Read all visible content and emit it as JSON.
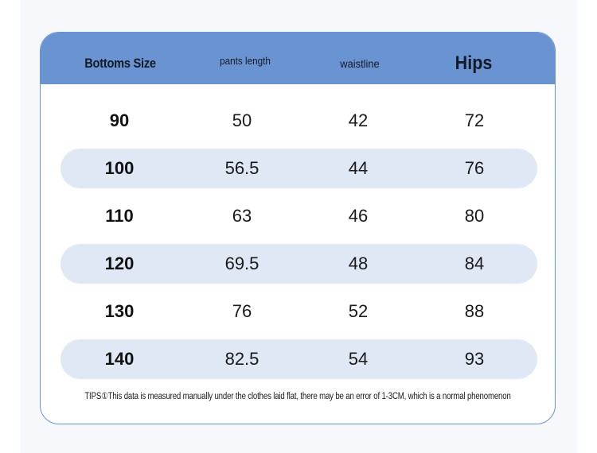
{
  "table": {
    "headers": [
      "Bottoms Size",
      "pants length",
      "waistline",
      "Hips"
    ],
    "rows": [
      [
        "90",
        "50",
        "42",
        "72"
      ],
      [
        "100",
        "56.5",
        "44",
        "76"
      ],
      [
        "110",
        "63",
        "46",
        "80"
      ],
      [
        "120",
        "69.5",
        "48",
        "84"
      ],
      [
        "130",
        "76",
        "52",
        "88"
      ],
      [
        "140",
        "82.5",
        "54",
        "93"
      ]
    ]
  },
  "tips": "TIPS①This data is measured manually under the clothes laid flat, there may be an error of 1-3CM, which is a normal phenomenon",
  "colors": {
    "header_background": "#6a93d2",
    "row_stripe": "#e0e7f5",
    "border": "#6a93d2"
  }
}
